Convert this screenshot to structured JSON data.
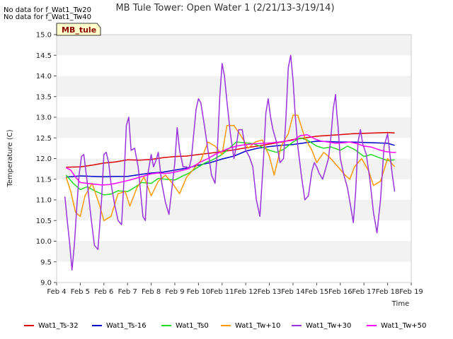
{
  "notes": [
    "No data for f_Wat1_Tw20",
    "No data for f_Wat1_Tw40"
  ],
  "station_badge": "MB_tule",
  "chart_data": {
    "type": "line",
    "title": "MB Tule Tower: Open Water 1 (2/21/13-3/19/14)",
    "xlabel": "Time",
    "ylabel": "Temperature (C)",
    "xlim": [
      4,
      19
    ],
    "ylim": [
      9.0,
      15.0
    ],
    "x_ticks": [
      4,
      5,
      6,
      7,
      8,
      9,
      10,
      11,
      12,
      13,
      14,
      15,
      16,
      17,
      18,
      19
    ],
    "x_tick_labels": [
      "Feb 4",
      "Feb 5",
      "Feb 6",
      "Feb 7",
      "Feb 8",
      "Feb 9",
      "Feb 10",
      "Feb 11",
      "Feb 12",
      "Feb 13",
      "Feb 14",
      "Feb 15",
      "Feb 16",
      "Feb 17",
      "Feb 18",
      "Feb 19"
    ],
    "y_ticks": [
      9.0,
      9.5,
      10.0,
      10.5,
      11.0,
      11.5,
      12.0,
      12.5,
      13.0,
      13.5,
      14.0,
      14.5,
      15.0
    ],
    "y_tick_labels": [
      "9.0",
      "9.5",
      "10.0",
      "10.5",
      "11.0",
      "11.5",
      "12.0",
      "12.5",
      "13.0",
      "13.5",
      "14.0",
      "14.5",
      "15.0"
    ],
    "grid": "alternating horizontal bands",
    "legend_position": "bottom",
    "series": [
      {
        "name": "Wat1_Ts-32",
        "color": "#dd0000",
        "x": [
          4.4,
          5.0,
          5.5,
          6.0,
          6.5,
          7.0,
          7.5,
          8.0,
          8.5,
          9.0,
          9.5,
          10.0,
          10.5,
          11.0,
          11.5,
          12.0,
          12.5,
          13.0,
          13.5,
          14.0,
          14.5,
          15.0,
          15.5,
          16.0,
          16.5,
          17.0,
          17.5,
          18.0,
          18.3
        ],
        "y": [
          11.79,
          11.8,
          11.84,
          11.89,
          11.92,
          11.97,
          11.96,
          11.98,
          12.02,
          12.05,
          12.06,
          12.1,
          12.13,
          12.17,
          12.21,
          12.26,
          12.3,
          12.35,
          12.4,
          12.46,
          12.5,
          12.54,
          12.56,
          12.58,
          12.6,
          12.61,
          12.62,
          12.63,
          12.62
        ]
      },
      {
        "name": "Wat1_Ts-16",
        "color": "#0000cc",
        "x": [
          4.4,
          5.0,
          5.5,
          6.0,
          6.5,
          7.0,
          7.5,
          8.0,
          8.5,
          9.0,
          9.5,
          10.0,
          10.5,
          11.0,
          11.5,
          12.0,
          12.5,
          13.0,
          13.5,
          14.0,
          14.5,
          15.0,
          15.5,
          16.0,
          16.5,
          17.0,
          17.5,
          18.0,
          18.3
        ],
        "y": [
          11.55,
          11.58,
          11.57,
          11.56,
          11.57,
          11.57,
          11.61,
          11.65,
          11.67,
          11.72,
          11.77,
          11.84,
          11.9,
          11.99,
          12.06,
          12.18,
          12.25,
          12.29,
          12.32,
          12.34,
          12.38,
          12.42,
          12.41,
          12.4,
          12.4,
          12.39,
          12.38,
          12.37,
          12.32
        ]
      },
      {
        "name": "Wat1_Ts0",
        "color": "#22dd22",
        "x": [
          4.4,
          4.7,
          5.0,
          5.3,
          5.6,
          6.0,
          6.3,
          6.6,
          7.0,
          7.3,
          7.6,
          8.0,
          8.3,
          8.6,
          9.0,
          9.3,
          9.6,
          10.0,
          10.3,
          10.6,
          11.0,
          11.3,
          11.6,
          12.0,
          12.3,
          12.6,
          13.0,
          13.3,
          13.6,
          14.0,
          14.3,
          14.6,
          15.0,
          15.3,
          15.6,
          16.0,
          16.3,
          16.6,
          17.0,
          17.3,
          17.6,
          18.0,
          18.3
        ],
        "y": [
          11.6,
          11.4,
          11.25,
          11.32,
          11.22,
          11.12,
          11.14,
          11.22,
          11.2,
          11.3,
          11.42,
          11.4,
          11.52,
          11.5,
          11.48,
          11.57,
          11.65,
          11.8,
          11.9,
          11.97,
          12.1,
          12.25,
          12.4,
          12.38,
          12.36,
          12.3,
          12.2,
          12.15,
          12.22,
          12.4,
          12.5,
          12.45,
          12.3,
          12.25,
          12.28,
          12.2,
          12.3,
          12.22,
          12.05,
          12.1,
          12.03,
          11.95,
          11.97
        ]
      },
      {
        "name": "Wat1_Tw+10",
        "color": "#ff9900",
        "x": [
          4.4,
          4.6,
          4.8,
          5.0,
          5.2,
          5.5,
          5.8,
          6.0,
          6.3,
          6.6,
          6.9,
          7.1,
          7.4,
          7.7,
          8.0,
          8.3,
          8.6,
          8.9,
          9.2,
          9.5,
          9.8,
          10.1,
          10.4,
          10.7,
          11.0,
          11.2,
          11.5,
          11.8,
          12.1,
          12.4,
          12.7,
          13.0,
          13.2,
          13.5,
          13.8,
          14.0,
          14.2,
          14.5,
          14.8,
          15.0,
          15.3,
          15.6,
          15.9,
          16.2,
          16.4,
          16.6,
          16.9,
          17.2,
          17.4,
          17.7,
          18.0,
          18.3
        ],
        "y": [
          11.55,
          11.2,
          10.7,
          10.6,
          11.1,
          11.4,
          10.9,
          10.5,
          10.6,
          11.15,
          11.2,
          10.85,
          11.3,
          11.55,
          11.1,
          11.45,
          11.6,
          11.4,
          11.15,
          11.55,
          11.75,
          11.95,
          12.4,
          12.3,
          12.1,
          12.8,
          12.8,
          12.55,
          12.25,
          12.4,
          12.45,
          12.05,
          11.6,
          12.3,
          12.6,
          13.05,
          13.05,
          12.5,
          12.2,
          11.9,
          12.15,
          12.0,
          11.8,
          11.6,
          11.5,
          11.8,
          12.0,
          11.7,
          11.35,
          11.45,
          12.0,
          11.8
        ]
      },
      {
        "name": "Wat1_Tw+30",
        "color": "#9933dd",
        "x": [
          4.35,
          4.45,
          4.55,
          4.65,
          4.75,
          4.85,
          4.95,
          5.05,
          5.15,
          5.3,
          5.45,
          5.6,
          5.75,
          5.9,
          6.0,
          6.1,
          6.2,
          6.3,
          6.45,
          6.6,
          6.75,
          6.85,
          6.95,
          7.05,
          7.15,
          7.3,
          7.45,
          7.55,
          7.65,
          7.75,
          7.85,
          8.0,
          8.1,
          8.2,
          8.3,
          8.45,
          8.6,
          8.75,
          8.9,
          9.0,
          9.1,
          9.2,
          9.35,
          9.5,
          9.6,
          9.7,
          9.8,
          9.9,
          10.0,
          10.1,
          10.25,
          10.4,
          10.55,
          10.7,
          10.8,
          10.9,
          11.0,
          11.1,
          11.2,
          11.35,
          11.5,
          11.6,
          11.7,
          11.85,
          12.0,
          12.15,
          12.3,
          12.45,
          12.6,
          12.75,
          12.85,
          12.95,
          13.05,
          13.15,
          13.3,
          13.45,
          13.6,
          13.7,
          13.8,
          13.9,
          14.0,
          14.1,
          14.2,
          14.35,
          14.5,
          14.65,
          14.8,
          14.9,
          15.0,
          15.1,
          15.25,
          15.4,
          15.5,
          15.6,
          15.7,
          15.8,
          15.85,
          15.9,
          16.0,
          16.15,
          16.3,
          16.45,
          16.55,
          16.65,
          16.75,
          16.85,
          16.95,
          17.1,
          17.25,
          17.4,
          17.55,
          17.7,
          17.85,
          18.0,
          18.1,
          18.2,
          18.3
        ],
        "y": [
          11.08,
          10.5,
          9.95,
          9.3,
          9.9,
          10.8,
          11.6,
          12.05,
          12.1,
          11.4,
          10.6,
          9.9,
          9.8,
          11.0,
          12.1,
          12.15,
          11.9,
          11.4,
          10.9,
          10.5,
          10.4,
          11.5,
          12.8,
          13.0,
          12.2,
          12.25,
          11.8,
          11.2,
          10.6,
          10.5,
          11.6,
          12.1,
          11.8,
          11.95,
          12.15,
          11.4,
          10.95,
          10.65,
          11.4,
          11.9,
          12.75,
          12.2,
          11.8,
          11.8,
          11.75,
          12.0,
          12.6,
          13.2,
          13.45,
          13.35,
          12.8,
          12.2,
          11.6,
          11.4,
          12.2,
          13.5,
          14.3,
          14.0,
          13.4,
          12.6,
          12.0,
          12.3,
          12.7,
          12.7,
          12.2,
          12.05,
          11.8,
          11.0,
          10.6,
          12.0,
          13.1,
          13.45,
          13.0,
          12.7,
          12.4,
          11.9,
          12.0,
          13.0,
          14.2,
          14.5,
          13.9,
          13.0,
          12.3,
          11.6,
          11.0,
          11.1,
          11.7,
          11.9,
          11.8,
          11.65,
          11.5,
          11.8,
          12.0,
          12.5,
          13.2,
          13.55,
          13.1,
          12.8,
          12.0,
          11.6,
          11.3,
          10.8,
          10.45,
          11.2,
          12.4,
          12.7,
          12.35,
          12.1,
          11.5,
          10.7,
          10.2,
          11.0,
          12.3,
          12.6,
          12.1,
          11.6,
          11.2
        ]
      },
      {
        "name": "Wat1_Tw+50",
        "color": "#ff00ff",
        "x": [
          4.4,
          4.6,
          4.8,
          5.0,
          5.3,
          5.6,
          5.9,
          6.2,
          6.5,
          6.8,
          7.1,
          7.4,
          7.7,
          8.0,
          8.3,
          8.6,
          8.9,
          9.2,
          9.5,
          9.8,
          10.1,
          10.4,
          10.7,
          11.0,
          11.3,
          11.6,
          11.9,
          12.2,
          12.5,
          12.8,
          13.1,
          13.4,
          13.7,
          14.0,
          14.3,
          14.6,
          14.9,
          15.2,
          15.5,
          15.8,
          16.1,
          16.4,
          16.7,
          17.0,
          17.3,
          17.6,
          17.9,
          18.2,
          18.35
        ],
        "y": [
          11.78,
          11.72,
          11.55,
          11.42,
          11.4,
          11.38,
          11.36,
          11.37,
          11.4,
          11.44,
          11.48,
          11.53,
          11.58,
          11.63,
          11.65,
          11.64,
          11.66,
          11.7,
          11.74,
          11.82,
          11.92,
          12.0,
          12.1,
          12.18,
          12.25,
          12.3,
          12.33,
          12.35,
          12.36,
          12.37,
          12.38,
          12.4,
          12.42,
          12.44,
          12.55,
          12.58,
          12.48,
          12.42,
          12.4,
          12.37,
          12.38,
          12.4,
          12.36,
          12.3,
          12.28,
          12.22,
          12.17,
          12.15,
          12.15
        ]
      }
    ]
  }
}
